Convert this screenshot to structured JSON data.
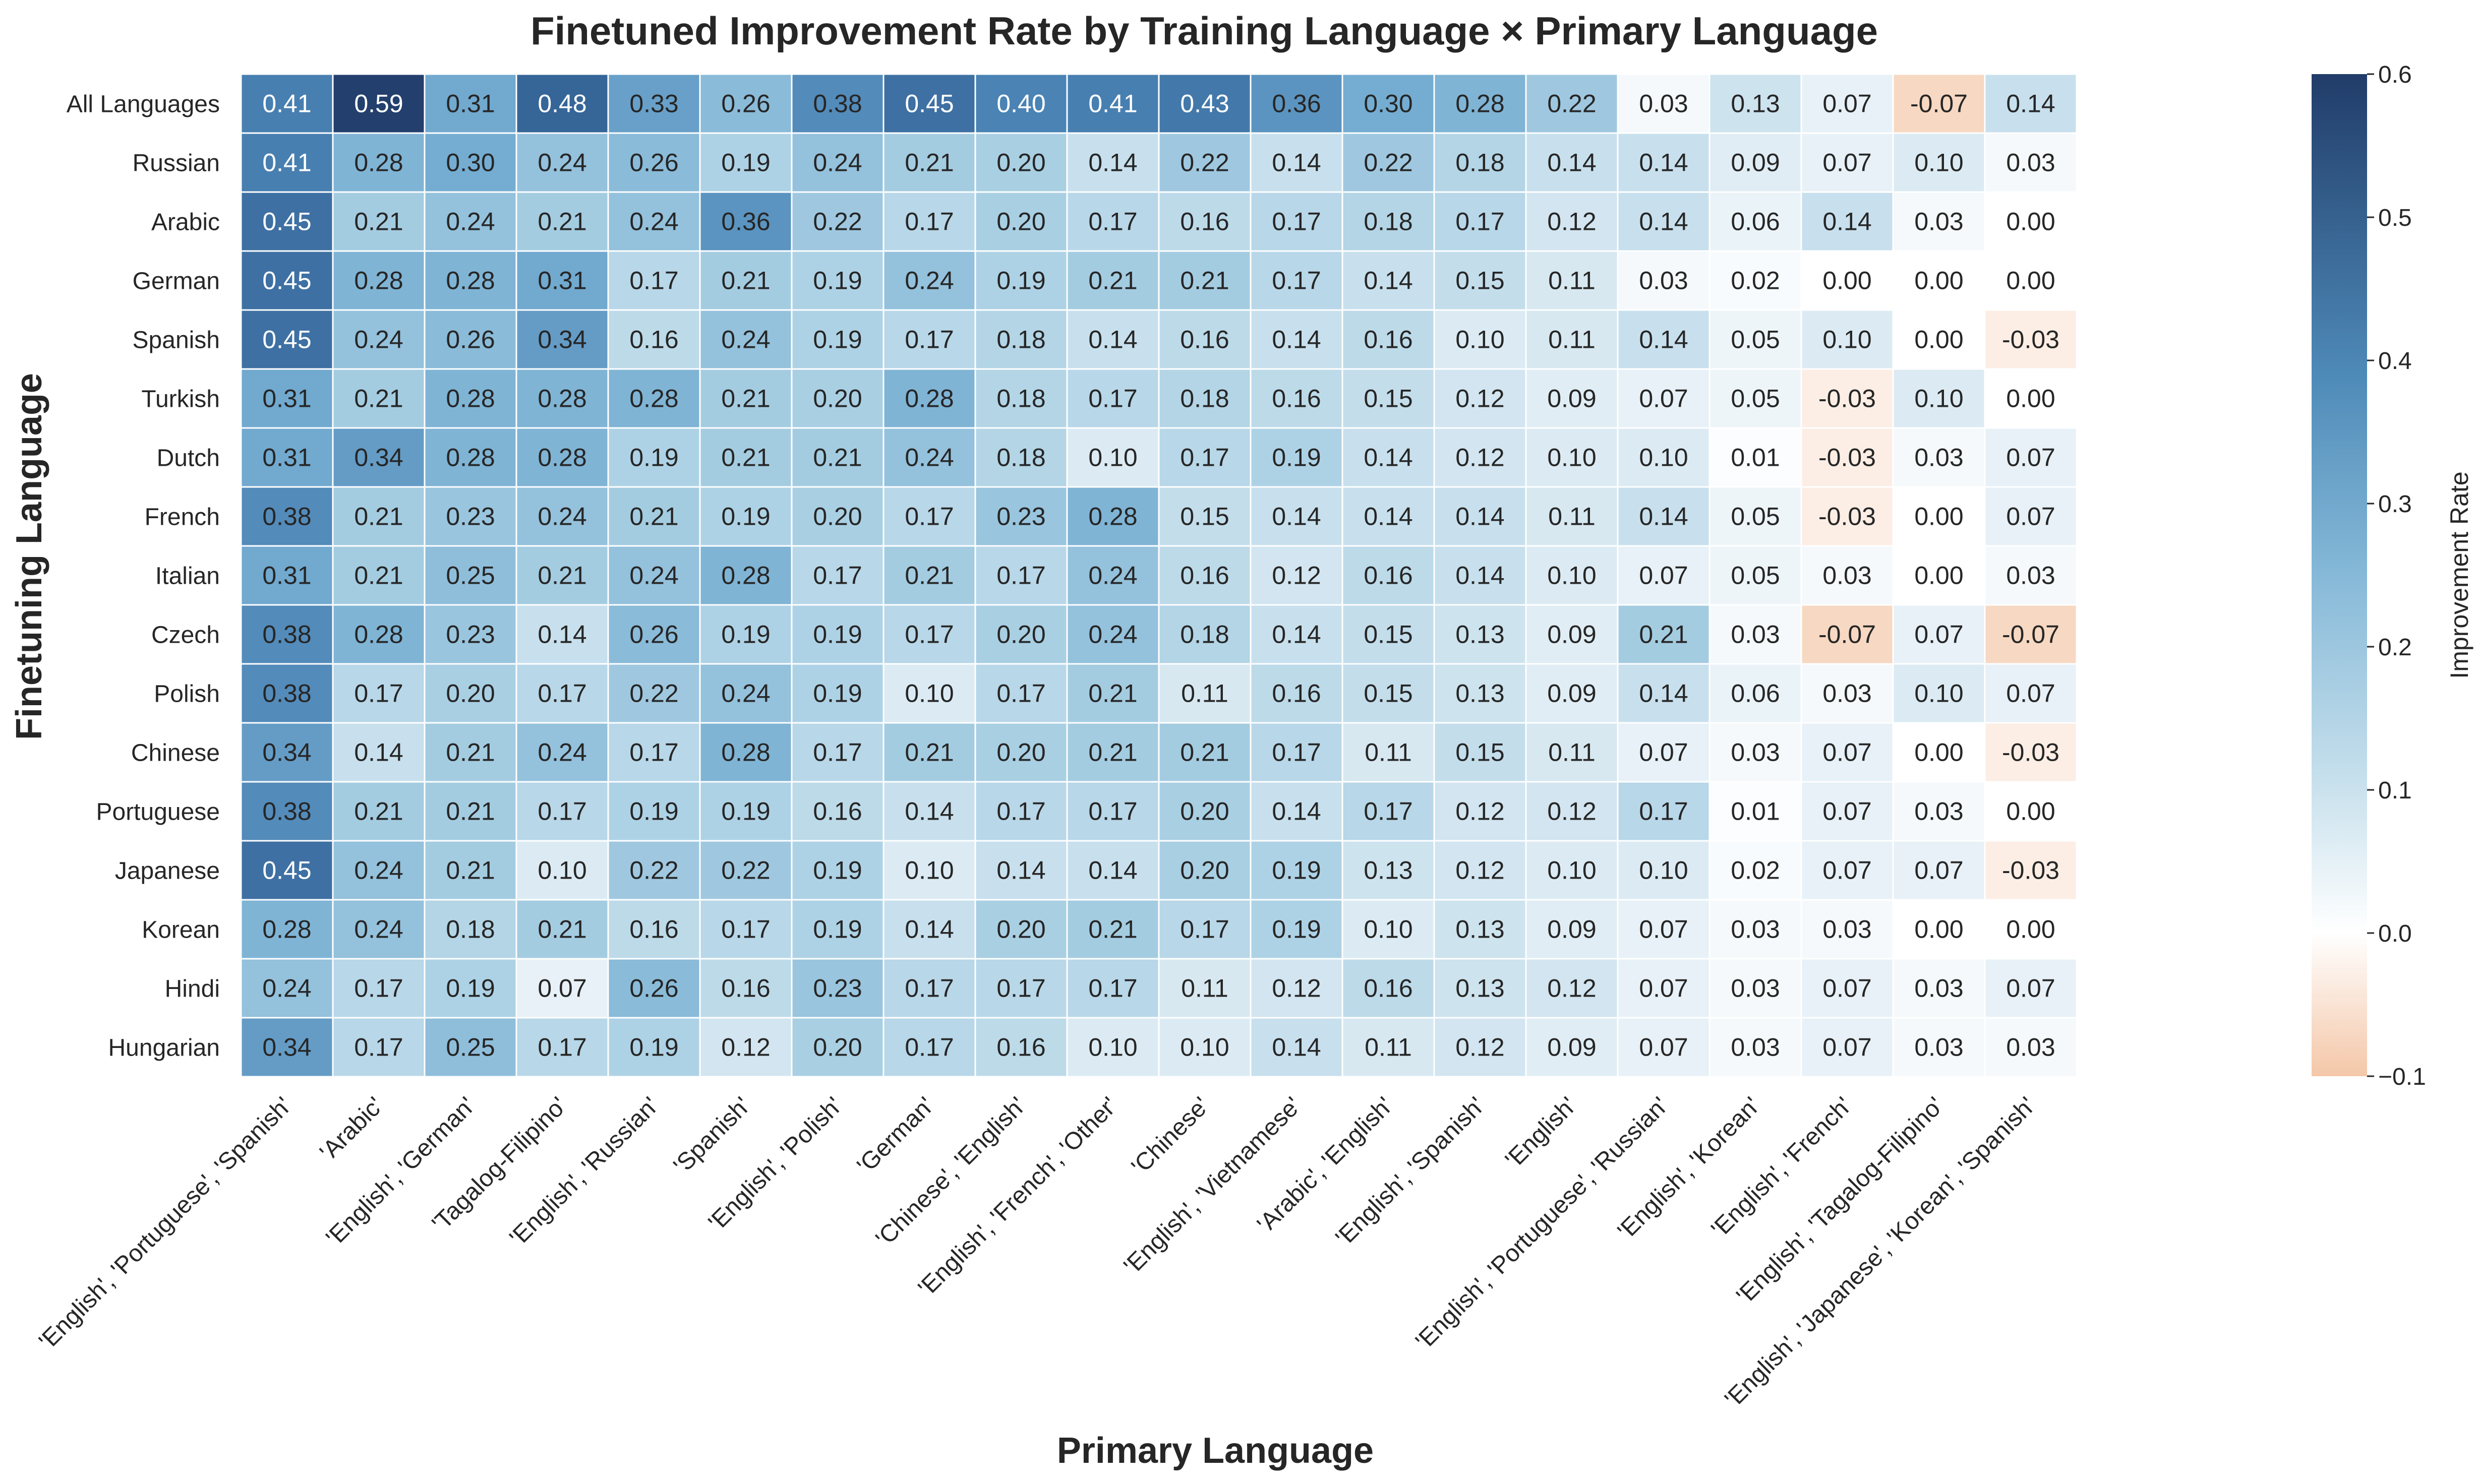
{
  "chart_data": {
    "type": "heatmap",
    "title": "Finetuned Improvement Rate by Training Language × Primary Language",
    "xlabel": "Primary Language",
    "ylabel": "Finetuning Language",
    "colorbar_label": "Improvement Rate",
    "colorbar_range": [
      -0.1,
      0.6
    ],
    "colorbar_ticks": [
      "0.6",
      "0.5",
      "0.4",
      "0.3",
      "0.2",
      "0.1",
      "0.0",
      "−0.1"
    ],
    "colormap": {
      "negative": "#f4c7a8",
      "zero": "#ffffff",
      "positive": "#213c69"
    },
    "annotated": true,
    "columns": [
      "'English', 'Portuguese', 'Spanish'",
      "'Arabic'",
      "'English', 'German'",
      "'Tagalog-Filipino'",
      "'English', 'Russian'",
      "'Spanish'",
      "'English', 'Polish'",
      "'German'",
      "'Chinese', 'English'",
      "'English', 'French', 'Other'",
      "'Chinese'",
      "'English', 'Vietnamese'",
      "'Arabic', 'English'",
      "'English', 'Spanish'",
      "'English'",
      "'English', 'Portuguese', 'Russian'",
      "'English', 'Korean'",
      "'English', 'French'",
      "'English', 'Tagalog-Filipino'",
      "'English', 'Japanese', 'Korean', 'Spanish'"
    ],
    "rows": [
      "All Languages",
      "Russian",
      "Arabic",
      "German",
      "Spanish",
      "Turkish",
      "Dutch",
      "French",
      "Italian",
      "Czech",
      "Polish",
      "Chinese",
      "Portuguese",
      "Japanese",
      "Korean",
      "Hindi",
      "Hungarian"
    ],
    "values": [
      [
        0.41,
        0.59,
        0.31,
        0.48,
        0.33,
        0.26,
        0.38,
        0.45,
        0.4,
        0.41,
        0.43,
        0.36,
        0.3,
        0.28,
        0.22,
        0.03,
        0.13,
        0.07,
        -0.07,
        0.14
      ],
      [
        0.41,
        0.28,
        0.3,
        0.24,
        0.26,
        0.19,
        0.24,
        0.21,
        0.2,
        0.14,
        0.22,
        0.14,
        0.22,
        0.18,
        0.14,
        0.14,
        0.09,
        0.07,
        0.1,
        0.03
      ],
      [
        0.45,
        0.21,
        0.24,
        0.21,
        0.24,
        0.36,
        0.22,
        0.17,
        0.2,
        0.17,
        0.16,
        0.17,
        0.18,
        0.17,
        0.12,
        0.14,
        0.06,
        0.14,
        0.03,
        0.0
      ],
      [
        0.45,
        0.28,
        0.28,
        0.31,
        0.17,
        0.21,
        0.19,
        0.24,
        0.19,
        0.21,
        0.21,
        0.17,
        0.14,
        0.15,
        0.11,
        0.03,
        0.02,
        0.0,
        0.0,
        0.0
      ],
      [
        0.45,
        0.24,
        0.26,
        0.34,
        0.16,
        0.24,
        0.19,
        0.17,
        0.18,
        0.14,
        0.16,
        0.14,
        0.16,
        0.1,
        0.11,
        0.14,
        0.05,
        0.1,
        0.0,
        -0.03
      ],
      [
        0.31,
        0.21,
        0.28,
        0.28,
        0.28,
        0.21,
        0.2,
        0.28,
        0.18,
        0.17,
        0.18,
        0.16,
        0.15,
        0.12,
        0.09,
        0.07,
        0.05,
        -0.03,
        0.1,
        0.0
      ],
      [
        0.31,
        0.34,
        0.28,
        0.28,
        0.19,
        0.21,
        0.21,
        0.24,
        0.18,
        0.1,
        0.17,
        0.19,
        0.14,
        0.12,
        0.1,
        0.1,
        0.01,
        -0.03,
        0.03,
        0.07
      ],
      [
        0.38,
        0.21,
        0.23,
        0.24,
        0.21,
        0.19,
        0.2,
        0.17,
        0.23,
        0.28,
        0.15,
        0.14,
        0.14,
        0.14,
        0.11,
        0.14,
        0.05,
        -0.03,
        0.0,
        0.07
      ],
      [
        0.31,
        0.21,
        0.25,
        0.21,
        0.24,
        0.28,
        0.17,
        0.21,
        0.17,
        0.24,
        0.16,
        0.12,
        0.16,
        0.14,
        0.1,
        0.07,
        0.05,
        0.03,
        0.0,
        0.03
      ],
      [
        0.38,
        0.28,
        0.23,
        0.14,
        0.26,
        0.19,
        0.19,
        0.17,
        0.2,
        0.24,
        0.18,
        0.14,
        0.15,
        0.13,
        0.09,
        0.21,
        0.03,
        -0.07,
        0.07,
        -0.07
      ],
      [
        0.38,
        0.17,
        0.2,
        0.17,
        0.22,
        0.24,
        0.19,
        0.1,
        0.17,
        0.21,
        0.11,
        0.16,
        0.15,
        0.13,
        0.09,
        0.14,
        0.06,
        0.03,
        0.1,
        0.07
      ],
      [
        0.34,
        0.14,
        0.21,
        0.24,
        0.17,
        0.28,
        0.17,
        0.21,
        0.2,
        0.21,
        0.21,
        0.17,
        0.11,
        0.15,
        0.11,
        0.07,
        0.03,
        0.07,
        0.0,
        -0.03
      ],
      [
        0.38,
        0.21,
        0.21,
        0.17,
        0.19,
        0.19,
        0.16,
        0.14,
        0.17,
        0.17,
        0.2,
        0.14,
        0.17,
        0.12,
        0.12,
        0.17,
        0.01,
        0.07,
        0.03,
        0.0
      ],
      [
        0.45,
        0.24,
        0.21,
        0.1,
        0.22,
        0.22,
        0.19,
        0.1,
        0.14,
        0.14,
        0.2,
        0.19,
        0.13,
        0.12,
        0.1,
        0.1,
        0.02,
        0.07,
        0.07,
        -0.03
      ],
      [
        0.28,
        0.24,
        0.18,
        0.21,
        0.16,
        0.17,
        0.19,
        0.14,
        0.2,
        0.21,
        0.17,
        0.19,
        0.1,
        0.13,
        0.09,
        0.07,
        0.03,
        0.03,
        0.0,
        0.0
      ],
      [
        0.24,
        0.17,
        0.19,
        0.07,
        0.26,
        0.16,
        0.23,
        0.17,
        0.17,
        0.17,
        0.11,
        0.12,
        0.16,
        0.13,
        0.12,
        0.07,
        0.03,
        0.07,
        0.03,
        0.07
      ],
      [
        0.34,
        0.17,
        0.25,
        0.17,
        0.19,
        0.12,
        0.2,
        0.17,
        0.16,
        0.1,
        0.1,
        0.14,
        0.11,
        0.12,
        0.09,
        0.07,
        0.03,
        0.07,
        0.03,
        0.03
      ]
    ]
  }
}
